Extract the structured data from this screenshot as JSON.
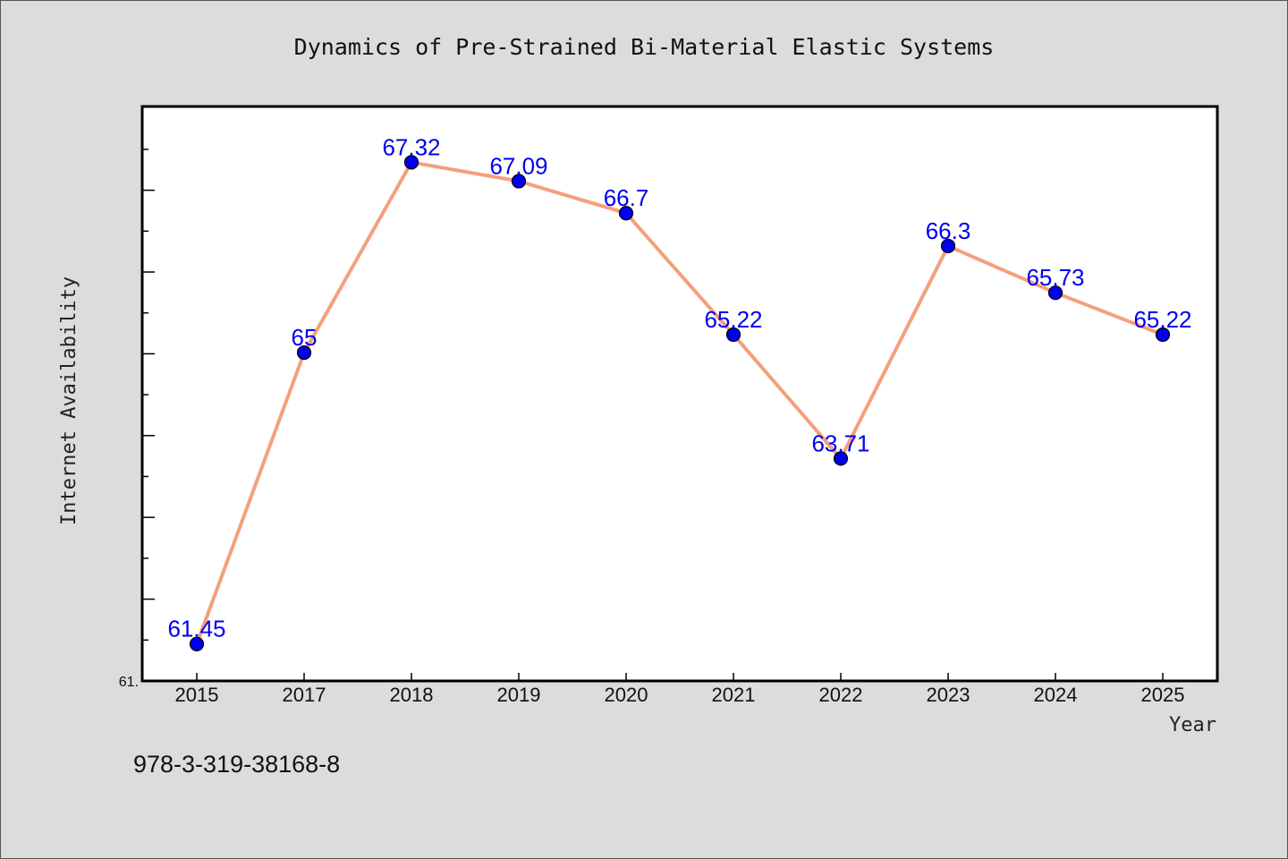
{
  "chart_data": {
    "type": "line",
    "title": "Dynamics of Pre-Strained Bi-Material Elastic Systems",
    "xlabel": "Year",
    "ylabel": "Internet Availability",
    "categories": [
      "2015",
      "2017",
      "2018",
      "2019",
      "2020",
      "2021",
      "2022",
      "2023",
      "2024",
      "2025"
    ],
    "series": [
      {
        "values": [
          61.45,
          65,
          67.32,
          67.09,
          66.7,
          65.22,
          63.71,
          66.3,
          65.73,
          65.22
        ],
        "labels": [
          "61.45",
          "65",
          "67.32",
          "67.09",
          "66.7",
          "65.22",
          "63.71",
          "66.3",
          "65.73",
          "65.22"
        ]
      }
    ],
    "ylim": [
      61,
      68
    ],
    "y_tick_label": "61.",
    "line_color": "#f4a07c",
    "marker_color": "#0000ee",
    "label_color": "#0000ee",
    "grid": false
  },
  "footer": {
    "code": "978-3-319-38168-8"
  }
}
